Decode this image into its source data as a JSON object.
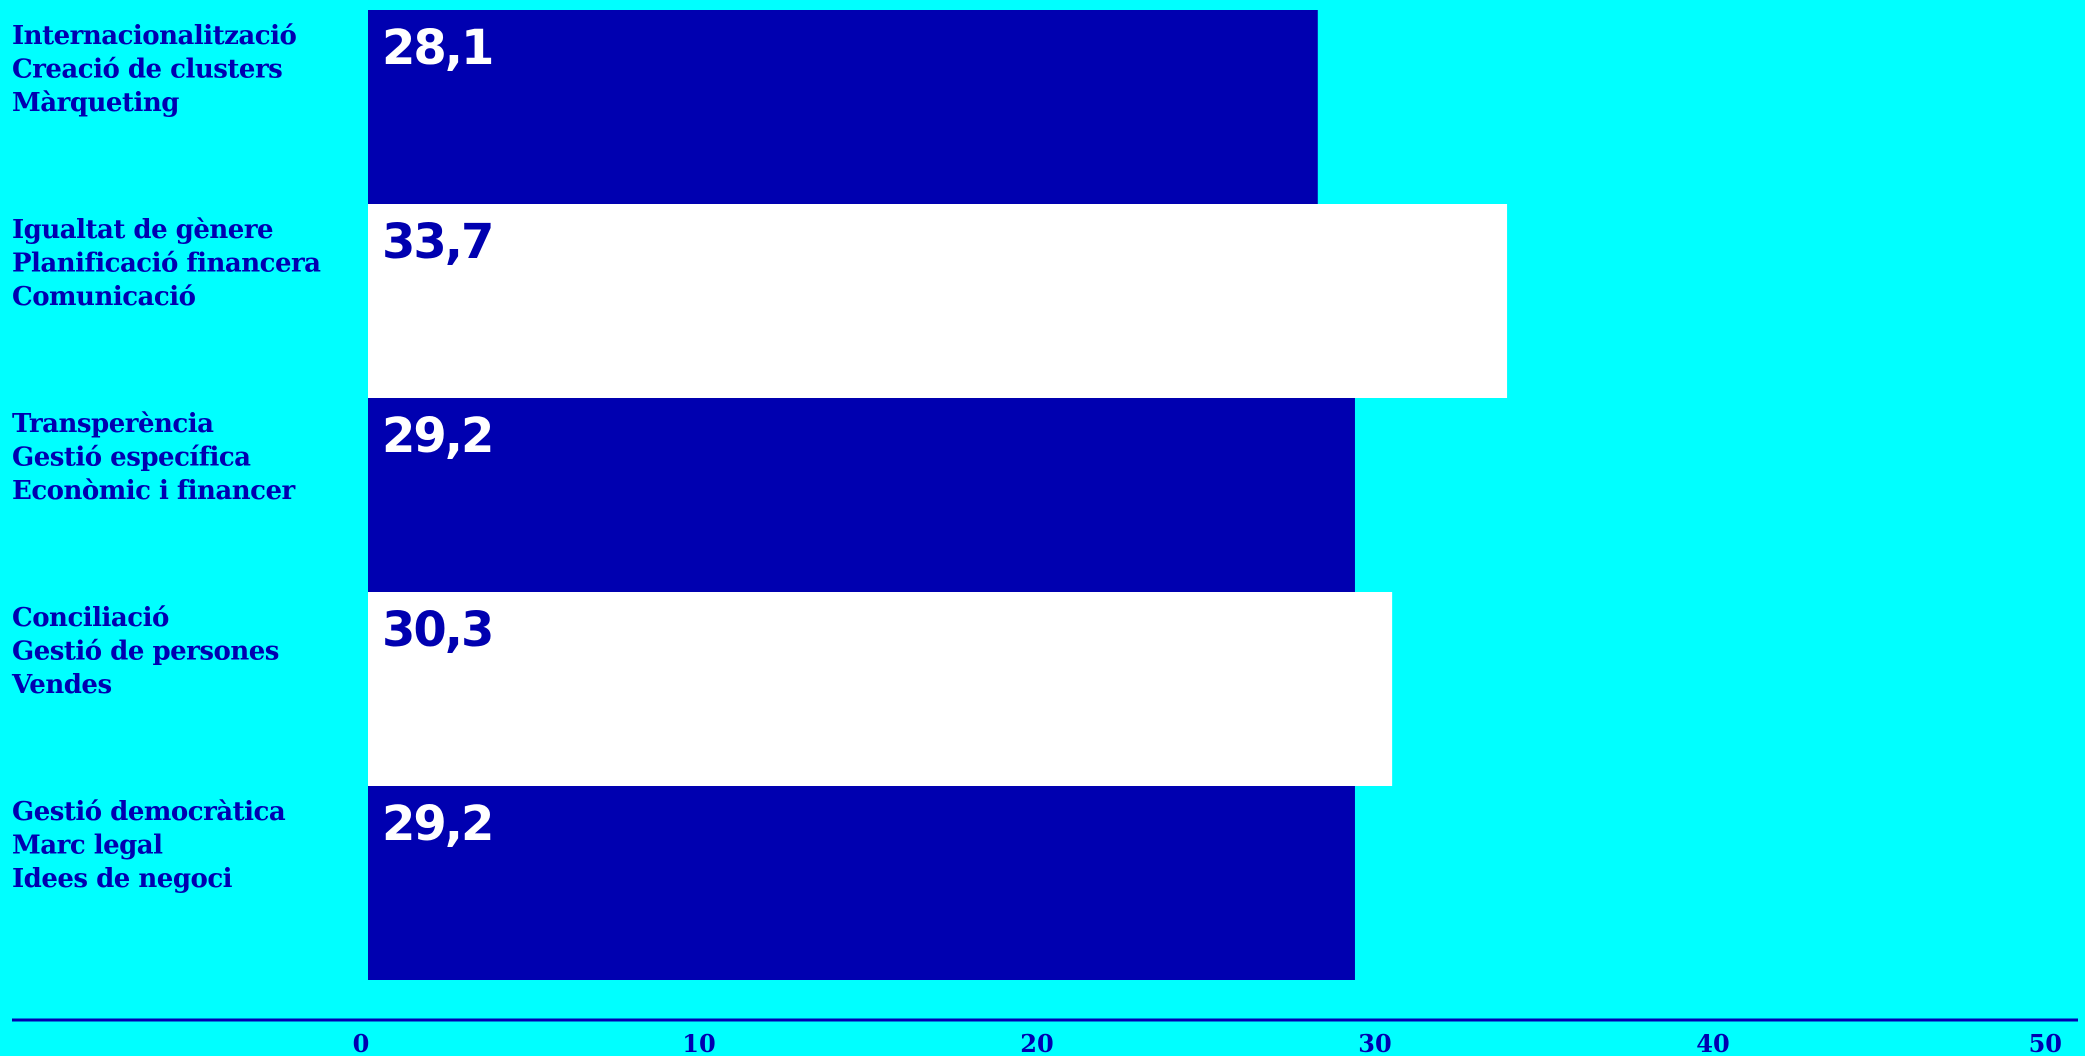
{
  "chart_data": {
    "type": "bar",
    "orientation": "horizontal",
    "categories": [
      [
        "Internacionalització",
        "Creació de clusters",
        "Màrqueting"
      ],
      [
        "Igualtat de gènere",
        "Planificació financera",
        "Comunicació"
      ],
      [
        "Transperència",
        "Gestió específica",
        "Econòmic i financer"
      ],
      [
        "Conciliació",
        "Gestió de persones",
        "Vendes"
      ],
      [
        "Gestió democràtica",
        "Marc legal",
        "Idees de negoci"
      ]
    ],
    "values": [
      28.1,
      33.7,
      29.2,
      30.3,
      29.2
    ],
    "value_labels": [
      "28,1",
      "33,7",
      "29,2",
      "30,3",
      "29,2"
    ],
    "xlim": [
      0,
      50
    ],
    "xticks": [
      0,
      10,
      20,
      30,
      40,
      50
    ],
    "xtick_labels": [
      "0",
      "10",
      "20",
      "30",
      "40",
      "50"
    ],
    "grid": false,
    "legend": "none"
  },
  "colors": {
    "background": "#00ffff",
    "bar_dark": "#0000b0",
    "bar_light": "#ffffff",
    "text_on_dark": "#ffffff",
    "text_on_light": "#0000b0",
    "label_text": "#0000b0",
    "axis": "#0000b0"
  }
}
